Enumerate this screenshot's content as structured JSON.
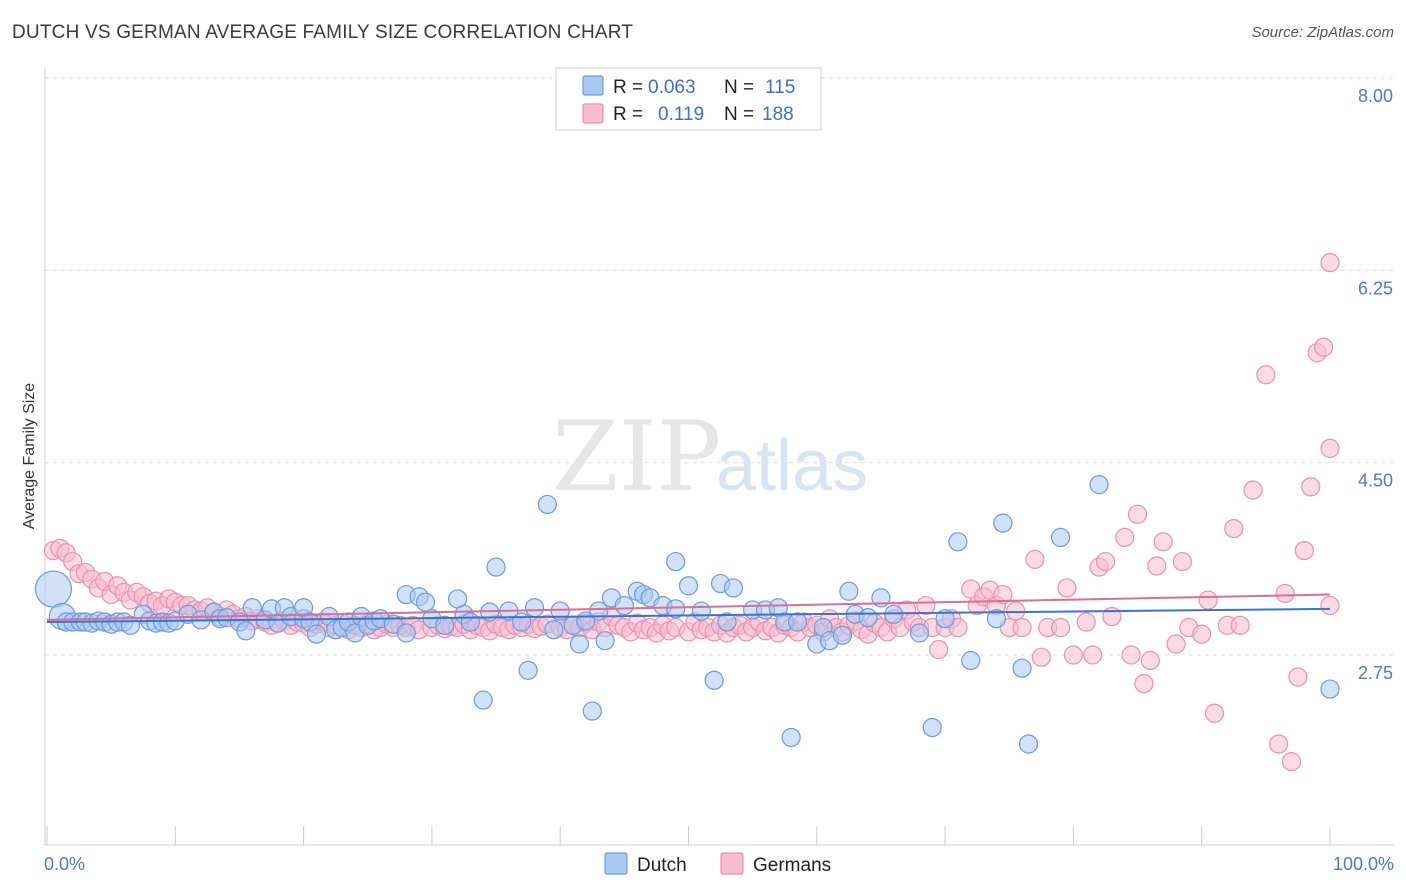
{
  "header": {
    "title": "DUTCH VS GERMAN AVERAGE FAMILY SIZE CORRELATION CHART",
    "source": "Source: ZipAtlas.com"
  },
  "colors": {
    "dutch_fill": "#a9c8f2",
    "dutch_stroke": "#6a9be0",
    "dutch_line": "#3a73d0",
    "german_fill": "#f7bcd0",
    "german_stroke": "#e991ad",
    "german_line": "#e06b94",
    "tick_text": "#4a7bd0",
    "grid": "#dddddd"
  },
  "legend_top": {
    "rows": [
      {
        "series": "Dutch",
        "r_label": "R =",
        "r_value": "0.063",
        "n_label": "N =",
        "n_value": "115"
      },
      {
        "series": "Germans",
        "r_label": "R =",
        "r_value": "0.119",
        "n_label": "N =",
        "n_value": "188"
      }
    ]
  },
  "watermark": {
    "zip": "ZIP",
    "atlas": "atlas"
  },
  "chart_data": {
    "type": "scatter",
    "title": "DUTCH VS GERMAN AVERAGE FAMILY SIZE CORRELATION CHART",
    "xlabel": "",
    "ylabel": "Average Family Size",
    "xlim": [
      0,
      100
    ],
    "ylim": [
      1.6,
      8.2
    ],
    "y_ticks": [
      2.75,
      4.5,
      6.25,
      8.0
    ],
    "y_tick_labels": [
      "2.75",
      "4.50",
      "6.25",
      "8.00"
    ],
    "x_tick_labels": [
      "0.0%",
      "100.0%"
    ],
    "grid": true,
    "legend_position": "top-center",
    "series": [
      {
        "name": "Dutch",
        "R": 0.063,
        "N": 115,
        "trend": {
          "x": [
            0,
            100
          ],
          "y": [
            3.05,
            3.17
          ]
        },
        "points": [
          [
            0.5,
            3.35
          ],
          [
            1.2,
            3.1
          ],
          [
            1.5,
            3.05
          ],
          [
            2,
            3.05
          ],
          [
            2.6,
            3.05
          ],
          [
            3,
            3.05
          ],
          [
            3.5,
            3.04
          ],
          [
            4,
            3.06
          ],
          [
            4.5,
            3.05
          ],
          [
            5,
            3.03
          ],
          [
            5.5,
            3.05
          ],
          [
            6,
            3.05
          ],
          [
            6.5,
            3.02
          ],
          [
            7.5,
            3.12
          ],
          [
            8,
            3.06
          ],
          [
            8.5,
            3.04
          ],
          [
            9,
            3.05
          ],
          [
            9.5,
            3.04
          ],
          [
            10,
            3.06
          ],
          [
            11,
            3.12
          ],
          [
            12,
            3.07
          ],
          [
            13,
            3.14
          ],
          [
            13.5,
            3.08
          ],
          [
            14,
            3.09
          ],
          [
            15,
            3.05
          ],
          [
            15.5,
            2.97
          ],
          [
            16,
            3.18
          ],
          [
            17,
            3.07
          ],
          [
            17.5,
            3.17
          ],
          [
            18,
            3.04
          ],
          [
            18.5,
            3.18
          ],
          [
            19,
            3.1
          ],
          [
            20,
            3.08
          ],
          [
            20,
            3.18
          ],
          [
            20.5,
            3.05
          ],
          [
            21,
            2.94
          ],
          [
            22,
            3.1
          ],
          [
            22.5,
            2.98
          ],
          [
            23,
            3.0
          ],
          [
            23.5,
            3.05
          ],
          [
            24,
            2.95
          ],
          [
            24.5,
            3.1
          ],
          [
            25,
            3.02
          ],
          [
            25.5,
            3.06
          ],
          [
            26,
            3.08
          ],
          [
            27,
            3.03
          ],
          [
            28,
            2.95
          ],
          [
            28,
            3.3
          ],
          [
            29,
            3.28
          ],
          [
            29.5,
            3.23
          ],
          [
            30,
            3.08
          ],
          [
            31,
            3.02
          ],
          [
            32,
            3.26
          ],
          [
            32.5,
            3.12
          ],
          [
            33,
            3.05
          ],
          [
            34,
            2.34
          ],
          [
            34.5,
            3.14
          ],
          [
            35,
            3.55
          ],
          [
            36,
            3.15
          ],
          [
            37,
            3.05
          ],
          [
            37.5,
            2.61
          ],
          [
            38,
            3.18
          ],
          [
            39,
            4.12
          ],
          [
            39.5,
            2.98
          ],
          [
            40,
            3.15
          ],
          [
            41,
            3.02
          ],
          [
            41.5,
            2.85
          ],
          [
            42,
            3.06
          ],
          [
            42.5,
            2.24
          ],
          [
            43,
            3.15
          ],
          [
            43.5,
            2.88
          ],
          [
            44,
            3.27
          ],
          [
            45,
            3.2
          ],
          [
            46,
            3.33
          ],
          [
            46.5,
            3.3
          ],
          [
            47,
            3.27
          ],
          [
            48,
            3.2
          ],
          [
            49,
            3.6
          ],
          [
            49,
            3.17
          ],
          [
            50,
            3.38
          ],
          [
            51,
            3.15
          ],
          [
            52,
            2.52
          ],
          [
            52.5,
            3.4
          ],
          [
            53,
            3.05
          ],
          [
            53.5,
            3.36
          ],
          [
            55,
            3.16
          ],
          [
            56,
            3.16
          ],
          [
            57,
            3.18
          ],
          [
            57.5,
            3.05
          ],
          [
            58,
            2.0
          ],
          [
            58.5,
            3.05
          ],
          [
            60,
            2.85
          ],
          [
            60.5,
            3.0
          ],
          [
            61,
            2.88
          ],
          [
            62,
            2.93
          ],
          [
            62.5,
            3.33
          ],
          [
            63,
            3.12
          ],
          [
            64,
            3.09
          ],
          [
            65,
            3.27
          ],
          [
            66,
            3.12
          ],
          [
            68,
            2.95
          ],
          [
            69,
            2.09
          ],
          [
            70,
            3.08
          ],
          [
            71,
            3.78
          ],
          [
            72,
            2.7
          ],
          [
            74,
            3.08
          ],
          [
            74.5,
            3.95
          ],
          [
            76,
            2.63
          ],
          [
            76.5,
            1.94
          ],
          [
            79,
            3.82
          ],
          [
            82,
            4.3
          ],
          [
            100,
            2.44
          ]
        ]
      },
      {
        "name": "Germans",
        "R": 0.119,
        "N": 188,
        "trend": {
          "x": [
            0,
            100
          ],
          "y": [
            3.07,
            3.3
          ]
        },
        "points": [
          [
            0.5,
            3.7
          ],
          [
            1,
            3.72
          ],
          [
            1.5,
            3.68
          ],
          [
            2,
            3.6
          ],
          [
            2.5,
            3.49
          ],
          [
            3,
            3.5
          ],
          [
            3.5,
            3.44
          ],
          [
            4,
            3.36
          ],
          [
            4.5,
            3.42
          ],
          [
            5,
            3.3
          ],
          [
            5.5,
            3.38
          ],
          [
            6,
            3.32
          ],
          [
            6.5,
            3.25
          ],
          [
            7,
            3.32
          ],
          [
            7.5,
            3.28
          ],
          [
            8,
            3.22
          ],
          [
            8.5,
            3.24
          ],
          [
            9,
            3.2
          ],
          [
            9.5,
            3.26
          ],
          [
            10,
            3.23
          ],
          [
            10.5,
            3.2
          ],
          [
            11,
            3.2
          ],
          [
            11.5,
            3.16
          ],
          [
            12,
            3.15
          ],
          [
            12.5,
            3.18
          ],
          [
            13,
            3.14
          ],
          [
            13.5,
            3.1
          ],
          [
            14,
            3.16
          ],
          [
            14.5,
            3.12
          ],
          [
            15,
            3.08
          ],
          [
            15.5,
            3.1
          ],
          [
            16,
            3.06
          ],
          [
            16.5,
            3.08
          ],
          [
            17,
            3.05
          ],
          [
            17.5,
            3.02
          ],
          [
            18,
            3.04
          ],
          [
            18.5,
            3.06
          ],
          [
            19,
            3.02
          ],
          [
            19.5,
            3.05
          ],
          [
            20,
            3.04
          ],
          [
            20.5,
            3.0
          ],
          [
            21,
            3.03
          ],
          [
            21.5,
            3.05
          ],
          [
            22,
            3.0
          ],
          [
            22.5,
            3.02
          ],
          [
            23,
            3.04
          ],
          [
            23.5,
            2.98
          ],
          [
            24,
            3.02
          ],
          [
            24.5,
            3.0
          ],
          [
            25,
            3.04
          ],
          [
            25.5,
            2.98
          ],
          [
            26,
            3.0
          ],
          [
            26.5,
            3.03
          ],
          [
            27,
            3.0
          ],
          [
            27.5,
            3.02
          ],
          [
            28,
            3.0
          ],
          [
            28.5,
            3.02
          ],
          [
            29,
            2.98
          ],
          [
            30,
            3.0
          ],
          [
            30.5,
            3.02
          ],
          [
            31,
            2.99
          ],
          [
            31.5,
            3.01
          ],
          [
            32,
            3.0
          ],
          [
            32.5,
            3.03
          ],
          [
            33,
            2.98
          ],
          [
            33.5,
            3.02
          ],
          [
            34,
            3.0
          ],
          [
            34.5,
            2.97
          ],
          [
            35,
            3.03
          ],
          [
            35.5,
            3.0
          ],
          [
            36,
            2.98
          ],
          [
            36.5,
            3.02
          ],
          [
            37,
            3.0
          ],
          [
            37.5,
            3.03
          ],
          [
            38,
            2.99
          ],
          [
            38.5,
            3.01
          ],
          [
            39,
            3.03
          ],
          [
            40,
            3.0
          ],
          [
            40.5,
            2.98
          ],
          [
            41,
            3.02
          ],
          [
            41.5,
            3.0
          ],
          [
            42,
            3.04
          ],
          [
            42.5,
            2.98
          ],
          [
            43,
            3.05
          ],
          [
            43.5,
            3.0
          ],
          [
            44,
            3.1
          ],
          [
            44.5,
            3.02
          ],
          [
            45,
            3.0
          ],
          [
            45.5,
            2.96
          ],
          [
            46,
            3.04
          ],
          [
            46.5,
            2.98
          ],
          [
            47,
            3.0
          ],
          [
            47.5,
            2.95
          ],
          [
            48,
            3.02
          ],
          [
            48.5,
            2.97
          ],
          [
            49,
            3.0
          ],
          [
            50,
            2.96
          ],
          [
            50.5,
            3.05
          ],
          [
            51,
            2.98
          ],
          [
            51.5,
            3.0
          ],
          [
            52,
            2.96
          ],
          [
            52.5,
            3.02
          ],
          [
            53,
            2.95
          ],
          [
            53.5,
            3.0
          ],
          [
            54,
            3.02
          ],
          [
            54.5,
            2.96
          ],
          [
            55,
            3.0
          ],
          [
            55.5,
            3.05
          ],
          [
            56,
            2.97
          ],
          [
            56.5,
            3.0
          ],
          [
            57,
            2.95
          ],
          [
            57.5,
            3.02
          ],
          [
            58,
            3.0
          ],
          [
            58.5,
            2.96
          ],
          [
            59,
            3.05
          ],
          [
            59.5,
            3.0
          ],
          [
            60,
            3.02
          ],
          [
            60.5,
            2.96
          ],
          [
            61,
            3.08
          ],
          [
            61.5,
            3.0
          ],
          [
            62,
            2.96
          ],
          [
            62.5,
            3.02
          ],
          [
            63,
            3.06
          ],
          [
            63.5,
            2.98
          ],
          [
            64,
            2.94
          ],
          [
            64.5,
            3.04
          ],
          [
            65,
            3.0
          ],
          [
            65.5,
            2.96
          ],
          [
            66,
            3.08
          ],
          [
            66.5,
            3.0
          ],
          [
            67,
            3.16
          ],
          [
            67.5,
            3.05
          ],
          [
            68,
            3.0
          ],
          [
            68.5,
            3.2
          ],
          [
            69,
            3.0
          ],
          [
            69.5,
            2.8
          ],
          [
            70,
            3.0
          ],
          [
            70.5,
            3.08
          ],
          [
            71,
            3.0
          ],
          [
            72,
            3.35
          ],
          [
            72.5,
            3.2
          ],
          [
            73,
            3.28
          ],
          [
            73.5,
            3.34
          ],
          [
            74,
            3.2
          ],
          [
            74.5,
            3.3
          ],
          [
            75,
            3.0
          ],
          [
            75.5,
            3.15
          ],
          [
            76,
            3.0
          ],
          [
            77,
            3.62
          ],
          [
            77.5,
            2.73
          ],
          [
            78,
            3.0
          ],
          [
            79,
            3.0
          ],
          [
            79.5,
            3.36
          ],
          [
            80,
            2.75
          ],
          [
            81,
            3.05
          ],
          [
            81.5,
            2.75
          ],
          [
            82,
            3.55
          ],
          [
            82.5,
            3.6
          ],
          [
            83,
            3.1
          ],
          [
            84,
            3.82
          ],
          [
            84.5,
            2.75
          ],
          [
            85,
            4.03
          ],
          [
            85.5,
            2.49
          ],
          [
            86,
            2.7
          ],
          [
            86.5,
            3.56
          ],
          [
            87,
            3.78
          ],
          [
            88,
            2.85
          ],
          [
            88.5,
            3.6
          ],
          [
            89,
            3.0
          ],
          [
            90,
            2.94
          ],
          [
            90.5,
            3.25
          ],
          [
            91,
            2.22
          ],
          [
            92,
            3.02
          ],
          [
            92.5,
            3.9
          ],
          [
            93,
            3.02
          ],
          [
            94,
            4.25
          ],
          [
            95,
            5.3
          ],
          [
            96,
            1.94
          ],
          [
            96.5,
            3.31
          ],
          [
            97,
            1.78
          ],
          [
            97.5,
            2.55
          ],
          [
            98,
            3.7
          ],
          [
            98.5,
            4.28
          ],
          [
            99,
            5.5
          ],
          [
            99.5,
            5.55
          ],
          [
            100,
            4.63
          ],
          [
            100.5,
            6.32
          ],
          [
            101,
            3.2
          ]
        ]
      }
    ]
  },
  "bottom_legend": [
    {
      "series": "Dutch",
      "label": "Dutch"
    },
    {
      "series": "Germans",
      "label": "Germans"
    }
  ]
}
